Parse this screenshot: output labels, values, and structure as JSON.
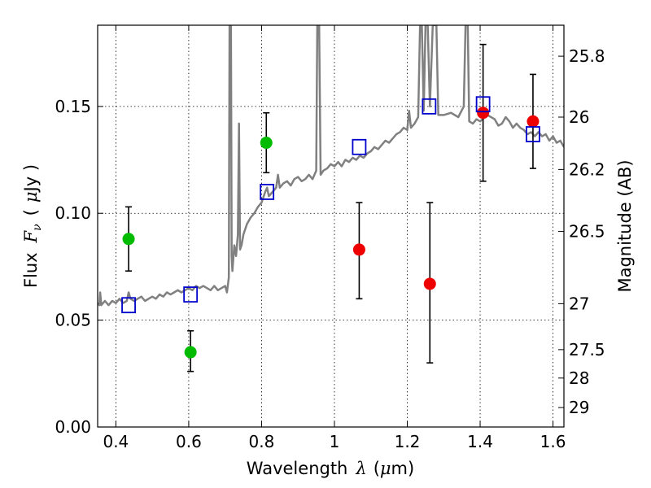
{
  "chart_data": {
    "type": "scatter",
    "xlabel_text": "Wavelength",
    "xlabel_symbol": "λ",
    "xlabel_unit_open": "(",
    "xlabel_unit_mu": "μ",
    "xlabel_unit_rest": "m)",
    "ylabel_text": "Flux",
    "ylabel_symbol": "F",
    "ylabel_subscript": "ν",
    "ylabel_unit_open": "(",
    "ylabel_unit_mu": "μ",
    "ylabel_unit_rest": "Jy )",
    "y2label": "Magnitude (AB)",
    "xlim": [
      0.35,
      1.63
    ],
    "ylim": [
      0.0,
      0.188
    ],
    "grid": true,
    "x_ticks": [
      0.4,
      0.6,
      0.8,
      1.0,
      1.2,
      1.4,
      1.6
    ],
    "x_tick_labels": [
      "0.4",
      "0.6",
      "0.8",
      "1",
      "1.2",
      "1.4",
      "1.6"
    ],
    "y_ticks": [
      0.0,
      0.05,
      0.1,
      0.15
    ],
    "y_tick_labels": [
      "0.00",
      "0.05",
      "0.10",
      "0.15"
    ],
    "y2_ticks": [
      {
        "label": "25.8",
        "flux": 0.1735
      },
      {
        "label": "26",
        "flux": 0.145
      },
      {
        "label": "26.2",
        "flux": 0.1205
      },
      {
        "label": "26.5",
        "flux": 0.0915
      },
      {
        "label": "27",
        "flux": 0.0577
      },
      {
        "label": "27.5",
        "flux": 0.0362
      },
      {
        "label": "28",
        "flux": 0.0229
      },
      {
        "label": "29",
        "flux": 0.0091
      }
    ],
    "model_spectrum": {
      "name": "model SED",
      "color": "#808080",
      "points": [
        [
          0.35,
          0.058
        ],
        [
          0.355,
          0.057
        ],
        [
          0.357,
          0.063
        ],
        [
          0.36,
          0.057
        ],
        [
          0.365,
          0.058
        ],
        [
          0.37,
          0.059
        ],
        [
          0.38,
          0.057
        ],
        [
          0.39,
          0.059
        ],
        [
          0.4,
          0.058
        ],
        [
          0.41,
          0.06
        ],
        [
          0.42,
          0.058
        ],
        [
          0.43,
          0.059
        ],
        [
          0.435,
          0.063
        ],
        [
          0.44,
          0.06
        ],
        [
          0.45,
          0.059
        ],
        [
          0.46,
          0.06
        ],
        [
          0.47,
          0.061
        ],
        [
          0.48,
          0.059
        ],
        [
          0.49,
          0.06
        ],
        [
          0.5,
          0.061
        ],
        [
          0.51,
          0.06
        ],
        [
          0.52,
          0.062
        ],
        [
          0.53,
          0.061
        ],
        [
          0.54,
          0.063
        ],
        [
          0.55,
          0.062
        ],
        [
          0.56,
          0.063
        ],
        [
          0.57,
          0.064
        ],
        [
          0.58,
          0.063
        ],
        [
          0.59,
          0.064
        ],
        [
          0.6,
          0.065
        ],
        [
          0.61,
          0.064
        ],
        [
          0.62,
          0.066
        ],
        [
          0.63,
          0.065
        ],
        [
          0.64,
          0.066
        ],
        [
          0.65,
          0.065
        ],
        [
          0.66,
          0.064
        ],
        [
          0.67,
          0.066
        ],
        [
          0.68,
          0.064
        ],
        [
          0.69,
          0.065
        ],
        [
          0.7,
          0.066
        ],
        [
          0.705,
          0.063
        ],
        [
          0.71,
          0.07
        ],
        [
          0.712,
          0.188
        ],
        [
          0.716,
          0.188
        ],
        [
          0.718,
          0.08
        ],
        [
          0.72,
          0.073
        ],
        [
          0.725,
          0.085
        ],
        [
          0.73,
          0.08
        ],
        [
          0.735,
          0.09
        ],
        [
          0.738,
          0.142
        ],
        [
          0.741,
          0.083
        ],
        [
          0.745,
          0.085
        ],
        [
          0.75,
          0.09
        ],
        [
          0.76,
          0.095
        ],
        [
          0.77,
          0.098
        ],
        [
          0.78,
          0.1
        ],
        [
          0.79,
          0.103
        ],
        [
          0.8,
          0.105
        ],
        [
          0.81,
          0.11
        ],
        [
          0.815,
          0.112
        ],
        [
          0.82,
          0.108
        ],
        [
          0.83,
          0.11
        ],
        [
          0.84,
          0.112
        ],
        [
          0.845,
          0.118
        ],
        [
          0.85,
          0.112
        ],
        [
          0.86,
          0.114
        ],
        [
          0.87,
          0.115
        ],
        [
          0.88,
          0.113
        ],
        [
          0.89,
          0.116
        ],
        [
          0.9,
          0.117
        ],
        [
          0.91,
          0.115
        ],
        [
          0.92,
          0.116
        ],
        [
          0.93,
          0.118
        ],
        [
          0.94,
          0.116
        ],
        [
          0.95,
          0.12
        ],
        [
          0.953,
          0.188
        ],
        [
          0.958,
          0.188
        ],
        [
          0.962,
          0.118
        ],
        [
          0.97,
          0.12
        ],
        [
          0.98,
          0.121
        ],
        [
          0.99,
          0.123
        ],
        [
          1.0,
          0.122
        ],
        [
          1.01,
          0.124
        ],
        [
          1.02,
          0.122
        ],
        [
          1.03,
          0.125
        ],
        [
          1.04,
          0.124
        ],
        [
          1.05,
          0.126
        ],
        [
          1.06,
          0.125
        ],
        [
          1.07,
          0.127
        ],
        [
          1.08,
          0.126
        ],
        [
          1.09,
          0.128
        ],
        [
          1.1,
          0.129
        ],
        [
          1.11,
          0.131
        ],
        [
          1.12,
          0.13
        ],
        [
          1.13,
          0.132
        ],
        [
          1.14,
          0.134
        ],
        [
          1.15,
          0.133
        ],
        [
          1.16,
          0.135
        ],
        [
          1.17,
          0.137
        ],
        [
          1.18,
          0.138
        ],
        [
          1.19,
          0.14
        ],
        [
          1.2,
          0.139
        ],
        [
          1.205,
          0.148
        ],
        [
          1.21,
          0.14
        ],
        [
          1.22,
          0.142
        ],
        [
          1.23,
          0.145
        ],
        [
          1.235,
          0.188
        ],
        [
          1.24,
          0.188
        ],
        [
          1.245,
          0.148
        ],
        [
          1.25,
          0.188
        ],
        [
          1.256,
          0.188
        ],
        [
          1.262,
          0.15
        ],
        [
          1.27,
          0.188
        ],
        [
          1.28,
          0.188
        ],
        [
          1.285,
          0.146
        ],
        [
          1.3,
          0.146
        ],
        [
          1.32,
          0.147
        ],
        [
          1.34,
          0.145
        ],
        [
          1.355,
          0.15
        ],
        [
          1.36,
          0.188
        ],
        [
          1.366,
          0.188
        ],
        [
          1.37,
          0.143
        ],
        [
          1.38,
          0.142
        ],
        [
          1.39,
          0.144
        ],
        [
          1.4,
          0.143
        ],
        [
          1.42,
          0.146
        ],
        [
          1.44,
          0.144
        ],
        [
          1.45,
          0.141
        ],
        [
          1.46,
          0.142
        ],
        [
          1.47,
          0.145
        ],
        [
          1.48,
          0.143
        ],
        [
          1.49,
          0.14
        ],
        [
          1.5,
          0.142
        ],
        [
          1.51,
          0.14
        ],
        [
          1.52,
          0.139
        ],
        [
          1.53,
          0.137
        ],
        [
          1.54,
          0.138
        ],
        [
          1.55,
          0.136
        ],
        [
          1.56,
          0.138
        ],
        [
          1.57,
          0.136
        ],
        [
          1.58,
          0.137
        ],
        [
          1.59,
          0.134
        ],
        [
          1.6,
          0.136
        ],
        [
          1.61,
          0.133
        ],
        [
          1.62,
          0.134
        ],
        [
          1.63,
          0.131
        ]
      ]
    },
    "series": [
      {
        "name": "green detections",
        "marker": "circle",
        "color": "#00bb00",
        "points": [
          {
            "x": 0.435,
            "y": 0.088,
            "err_low": 0.073,
            "err_high": 0.103
          },
          {
            "x": 0.605,
            "y": 0.035,
            "err_low": 0.026,
            "err_high": 0.045
          },
          {
            "x": 0.813,
            "y": 0.133,
            "err_low": 0.119,
            "err_high": 0.147
          }
        ]
      },
      {
        "name": "red detections",
        "marker": "circle",
        "color": "#ee0000",
        "points": [
          {
            "x": 1.068,
            "y": 0.083,
            "err_low": 0.06,
            "err_high": 0.105
          },
          {
            "x": 1.262,
            "y": 0.067,
            "err_low": 0.03,
            "err_high": 0.105
          },
          {
            "x": 1.408,
            "y": 0.147,
            "err_low": 0.115,
            "err_high": 0.179
          },
          {
            "x": 1.545,
            "y": 0.143,
            "err_low": 0.121,
            "err_high": 0.165
          }
        ]
      },
      {
        "name": "model photometry",
        "marker": "square",
        "color": "#0000cc",
        "points": [
          {
            "x": 0.435,
            "y": 0.057
          },
          {
            "x": 0.605,
            "y": 0.062
          },
          {
            "x": 0.815,
            "y": 0.11
          },
          {
            "x": 1.068,
            "y": 0.131
          },
          {
            "x": 1.26,
            "y": 0.15
          },
          {
            "x": 1.408,
            "y": 0.151
          },
          {
            "x": 1.545,
            "y": 0.137
          }
        ]
      }
    ]
  }
}
